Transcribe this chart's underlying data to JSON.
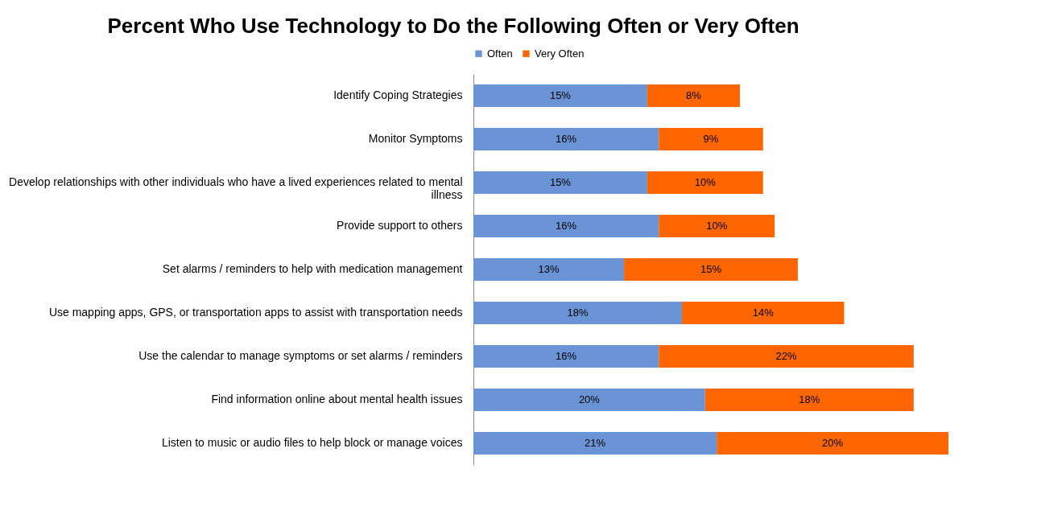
{
  "chart_data": {
    "type": "bar",
    "orientation": "horizontal",
    "stacked": true,
    "title": "Percent Who Use Technology to Do the Following Often or Very Often",
    "legend": "top",
    "grid": false,
    "categories": [
      "Identify Coping Strategies",
      "Monitor Symptoms",
      "Develop relationships with other individuals who have a lived experiences related to mental illness",
      "Provide support to others",
      "Set alarms / reminders to help with medication management",
      "Use mapping apps, GPS, or transportation apps to assist with transportation needs",
      "Use the calendar to manage symptoms or set alarms / reminders",
      "Find information online about mental health issues",
      "Listen to music or audio files to help block or manage voices"
    ],
    "series": [
      {
        "name": "Often",
        "color": "#6b94d6",
        "values": [
          15,
          16,
          15,
          16,
          13,
          18,
          16,
          20,
          21
        ],
        "value_labels": [
          "15%",
          "16%",
          "15%",
          "16%",
          "13%",
          "18%",
          "16%",
          "20%",
          "21%"
        ]
      },
      {
        "name": "Very Often",
        "color": "#ff6600",
        "values": [
          8,
          9,
          10,
          10,
          15,
          14,
          22,
          18,
          20
        ],
        "value_labels": [
          "8%",
          "9%",
          "10%",
          "10%",
          "15%",
          "14%",
          "22%",
          "18%",
          "20%"
        ]
      }
    ]
  }
}
